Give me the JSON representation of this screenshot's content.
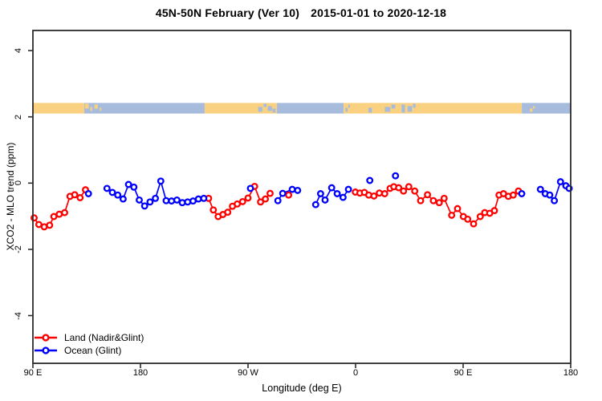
{
  "title": {
    "range": "45N-50N February (Ver 10)",
    "dates": "2015-01-01 to 2020-12-18"
  },
  "axes": {
    "x_label": "Longitude (deg E)",
    "y_label": "XCO2 - MLO trend (ppm)"
  },
  "legend": [
    {
      "label": "Land (Nadir&Glint)",
      "color": "#ff0000"
    },
    {
      "label": "Ocean (Glint)",
      "color": "#0000ff"
    }
  ],
  "chart_data": {
    "type": "line",
    "title": "45N-50N February (Ver 10)  2015-01-01 to 2020-12-18",
    "xlabel": "Longitude (deg E)",
    "ylabel": "XCO2 - MLO trend (ppm)",
    "xlim": [
      90,
      540
    ],
    "ylim": [
      -5.45,
      4.6
    ],
    "grid": false,
    "x_ticks": [
      {
        "pos": 90,
        "label": "90 E"
      },
      {
        "pos": 180,
        "label": "180"
      },
      {
        "pos": 270,
        "label": "90 W"
      },
      {
        "pos": 360,
        "label": "0"
      },
      {
        "pos": 450,
        "label": "90 E"
      },
      {
        "pos": 540,
        "label": "180"
      }
    ],
    "y_ticks": [
      {
        "pos": -4,
        "label": "-4"
      },
      {
        "pos": -2,
        "label": "-2"
      },
      {
        "pos": 0,
        "label": "0"
      },
      {
        "pos": 2,
        "label": "2"
      },
      {
        "pos": 4,
        "label": "4"
      }
    ],
    "band": {
      "description": "land/ocean strip along 45N-50N",
      "value_range": [
        2.1,
        2.42
      ],
      "land_color": "#f9d180",
      "ocean_color": "#a7bcdc",
      "segments": [
        {
          "from": 90,
          "to": 133,
          "type": "land"
        },
        {
          "from": 133,
          "to": 233.7,
          "type": "ocean"
        },
        {
          "from": 233.7,
          "to": 294.2,
          "type": "land"
        },
        {
          "from": 294.2,
          "to": 350,
          "type": "ocean"
        },
        {
          "from": 350,
          "to": 499.1,
          "type": "land"
        },
        {
          "from": 499.1,
          "to": 540,
          "type": "ocean"
        }
      ],
      "speckles": [
        {
          "lon": 133.5,
          "w": 3.2,
          "type": "land",
          "dy": 1,
          "h": 6
        },
        {
          "lon": 138,
          "w": 1.5,
          "type": "land",
          "dy": 5,
          "h": 5
        },
        {
          "lon": 141.5,
          "w": 2.8,
          "type": "land",
          "dy": 2,
          "h": 5
        },
        {
          "lon": 146,
          "w": 1.2,
          "type": "land",
          "dy": 6,
          "h": 4
        },
        {
          "lon": 278.5,
          "w": 3.5,
          "type": "ocean",
          "dy": 5,
          "h": 6
        },
        {
          "lon": 283,
          "w": 2.5,
          "type": "ocean",
          "dy": 1,
          "h": 4
        },
        {
          "lon": 286.5,
          "w": 3.5,
          "type": "ocean",
          "dy": 4,
          "h": 6
        },
        {
          "lon": 290.5,
          "w": 2.5,
          "type": "ocean",
          "dy": 7,
          "h": 5
        },
        {
          "lon": 351.5,
          "w": 1.8,
          "type": "ocean",
          "dy": 6,
          "h": 5
        },
        {
          "lon": 354,
          "w": 1.2,
          "type": "ocean",
          "dy": 2,
          "h": 4
        },
        {
          "lon": 370.8,
          "w": 2.8,
          "type": "ocean",
          "dy": 6,
          "h": 6
        },
        {
          "lon": 384.5,
          "w": 4.5,
          "type": "ocean",
          "dy": 5,
          "h": 6
        },
        {
          "lon": 390,
          "w": 3.2,
          "type": "ocean",
          "dy": 2,
          "h": 5
        },
        {
          "lon": 398.5,
          "w": 2.8,
          "type": "ocean",
          "dy": 2,
          "h": 10
        },
        {
          "lon": 403.5,
          "w": 3.8,
          "type": "ocean",
          "dy": 4,
          "h": 7
        },
        {
          "lon": 408,
          "w": 2.2,
          "type": "ocean",
          "dy": 1,
          "h": 5
        },
        {
          "lon": 505.8,
          "w": 2.2,
          "type": "land",
          "dy": 7,
          "h": 4
        },
        {
          "lon": 508.5,
          "w": 1.4,
          "type": "land",
          "dy": 4,
          "h": 3
        }
      ]
    },
    "series": [
      {
        "name": "Land (Nadir&Glint)",
        "color": "#ff0000",
        "runs": [
          [
            [
              91,
              -1.05
            ],
            [
              95,
              -1.25
            ],
            [
              99.5,
              -1.32
            ],
            [
              104,
              -1.27
            ],
            [
              107.5,
              -1.01
            ],
            [
              112,
              -0.94
            ],
            [
              116.5,
              -0.89
            ],
            [
              121,
              -0.4
            ],
            [
              125,
              -0.35
            ],
            [
              129.5,
              -0.44
            ],
            [
              134,
              -0.2
            ]
          ],
          [
            [
              237,
              -0.46
            ],
            [
              241,
              -0.81
            ],
            [
              245,
              -1.01
            ],
            [
              249,
              -0.95
            ],
            [
              253,
              -0.88
            ],
            [
              257,
              -0.7
            ],
            [
              261,
              -0.63
            ],
            [
              265.5,
              -0.56
            ],
            [
              270,
              -0.45
            ],
            [
              275.5,
              -0.1
            ],
            [
              280.5,
              -0.57
            ],
            [
              284.5,
              -0.48
            ],
            [
              288.5,
              -0.31
            ]
          ],
          [
            [
              304,
              -0.36
            ]
          ],
          [
            [
              359.8,
              -0.27
            ],
            [
              363.6,
              -0.3
            ],
            [
              367.4,
              -0.28
            ],
            [
              371,
              -0.36
            ],
            [
              375.4,
              -0.39
            ],
            [
              379.9,
              -0.3
            ],
            [
              384.4,
              -0.32
            ],
            [
              388.9,
              -0.16
            ],
            [
              392,
              -0.11
            ],
            [
              396.1,
              -0.14
            ],
            [
              400.1,
              -0.24
            ],
            [
              404.5,
              -0.11
            ],
            [
              409.5,
              -0.24
            ],
            [
              414.4,
              -0.53
            ],
            [
              420.2,
              -0.35
            ],
            [
              425.1,
              -0.53
            ],
            [
              430,
              -0.59
            ],
            [
              434.1,
              -0.46
            ],
            [
              440.4,
              -0.97
            ],
            [
              445.3,
              -0.77
            ],
            [
              450.2,
              -1.01
            ],
            [
              453.8,
              -1.09
            ],
            [
              458.7,
              -1.23
            ],
            [
              464.3,
              -1.01
            ],
            [
              468.1,
              -0.89
            ],
            [
              472.2,
              -0.91
            ],
            [
              476.2,
              -0.83
            ],
            [
              480,
              -0.36
            ],
            [
              483.8,
              -0.32
            ],
            [
              487.8,
              -0.4
            ],
            [
              491.9,
              -0.36
            ],
            [
              496.3,
              -0.24
            ]
          ]
        ]
      },
      {
        "name": "Ocean (Glint)",
        "color": "#0000ff",
        "runs": [
          [
            [
              136.5,
              -0.32
            ]
          ],
          [
            [
              152,
              -0.16
            ],
            [
              156.5,
              -0.28
            ],
            [
              161,
              -0.36
            ],
            [
              165.5,
              -0.48
            ],
            [
              170,
              -0.04
            ],
            [
              174.5,
              -0.12
            ],
            [
              179,
              -0.51
            ],
            [
              183.5,
              -0.69
            ],
            [
              188,
              -0.57
            ],
            [
              192.5,
              -0.46
            ],
            [
              197,
              0.06
            ],
            [
              201.5,
              -0.53
            ],
            [
              206,
              -0.54
            ],
            [
              210.5,
              -0.51
            ],
            [
              215,
              -0.59
            ],
            [
              219.5,
              -0.57
            ],
            [
              224,
              -0.54
            ],
            [
              228.5,
              -0.48
            ],
            [
              233,
              -0.46
            ]
          ],
          [
            [
              272,
              -0.16
            ]
          ],
          [
            [
              295,
              -0.53
            ],
            [
              299,
              -0.31
            ],
            [
              307,
              -0.19
            ],
            [
              311.5,
              -0.22
            ]
          ],
          [
            [
              326.6,
              -0.65
            ],
            [
              330.7,
              -0.32
            ],
            [
              334.5,
              -0.51
            ],
            [
              340,
              -0.14
            ],
            [
              344.6,
              -0.32
            ],
            [
              349.5,
              -0.43
            ],
            [
              354,
              -0.19
            ]
          ],
          [
            [
              371.9,
              0.08
            ]
          ],
          [
            [
              393.4,
              0.22
            ]
          ],
          [
            [
              499,
              -0.32
            ]
          ],
          [
            [
              514.7,
              -0.19
            ],
            [
              518.7,
              -0.32
            ],
            [
              522.5,
              -0.36
            ],
            [
              526.3,
              -0.53
            ],
            [
              531.5,
              0.04
            ],
            [
              536,
              -0.08
            ],
            [
              538.7,
              -0.16
            ]
          ]
        ]
      }
    ]
  }
}
